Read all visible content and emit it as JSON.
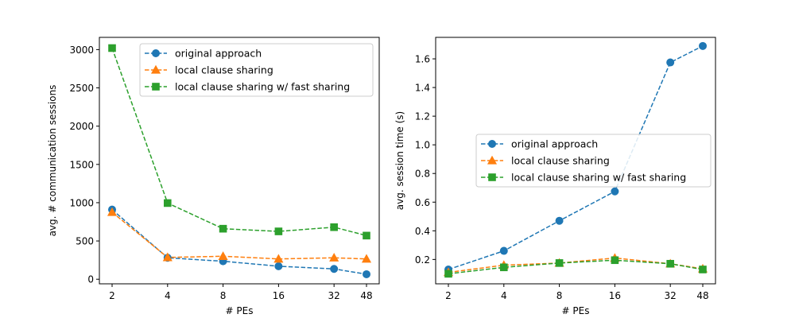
{
  "chart_data": [
    {
      "type": "line",
      "xlabel": "# PEs",
      "ylabel": "avg. # communication sessions",
      "xscale": "log2",
      "x": [
        2,
        4,
        8,
        16,
        32,
        48
      ],
      "xticks": [
        "2",
        "4",
        "8",
        "16",
        "32",
        "48"
      ],
      "ylim": [
        -60,
        3160
      ],
      "yticks": [
        0,
        500,
        1000,
        1500,
        2000,
        2500,
        3000
      ],
      "legend_position": "top-right",
      "series": [
        {
          "name": "original approach",
          "color": "#1f77b4",
          "marker": "circle",
          "values": [
            910,
            280,
            235,
            170,
            135,
            65
          ]
        },
        {
          "name": "local clause sharing",
          "color": "#ff7f0e",
          "marker": "triangle",
          "values": [
            875,
            285,
            300,
            265,
            280,
            265
          ]
        },
        {
          "name": "local clause sharing w/ fast sharing",
          "color": "#2ca02c",
          "marker": "square",
          "values": [
            3020,
            995,
            660,
            625,
            680,
            570
          ]
        }
      ]
    },
    {
      "type": "line",
      "xlabel": "# PEs",
      "ylabel": "avg. session time (s)",
      "xscale": "log2",
      "x": [
        2,
        4,
        8,
        16,
        32,
        48
      ],
      "xticks": [
        "2",
        "4",
        "8",
        "16",
        "32",
        "48"
      ],
      "ylim": [
        0.03,
        1.75
      ],
      "yticks": [
        0.2,
        0.4,
        0.6,
        0.8,
        1.0,
        1.2,
        1.4,
        1.6
      ],
      "legend_position": "center-right",
      "series": [
        {
          "name": "original approach",
          "color": "#1f77b4",
          "marker": "circle",
          "values": [
            0.13,
            0.26,
            0.47,
            0.675,
            1.575,
            1.69
          ]
        },
        {
          "name": "local clause sharing",
          "color": "#ff7f0e",
          "marker": "triangle",
          "values": [
            0.11,
            0.16,
            0.175,
            0.21,
            0.17,
            0.135
          ]
        },
        {
          "name": "local clause sharing w/ fast sharing",
          "color": "#2ca02c",
          "marker": "square",
          "values": [
            0.1,
            0.145,
            0.175,
            0.195,
            0.17,
            0.13
          ]
        }
      ]
    }
  ]
}
